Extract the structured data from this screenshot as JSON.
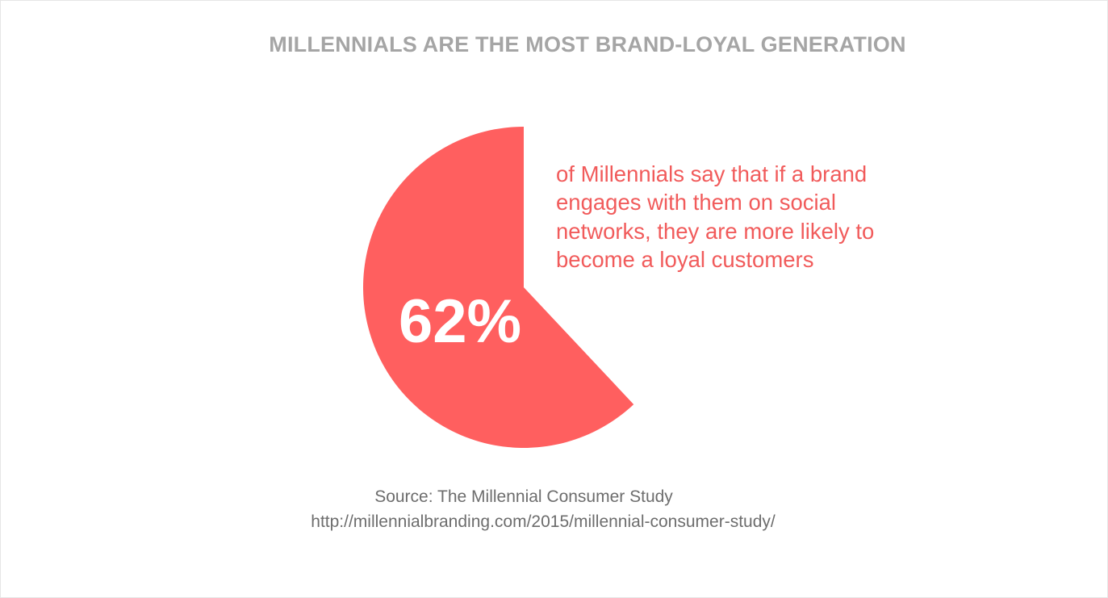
{
  "colors": {
    "accent": "#ff5f5f",
    "title": "#a5a5a5",
    "description": "#f15b5b",
    "source": "#6d6d6d",
    "background": "#ffffff"
  },
  "chart_data": {
    "type": "pie",
    "title": "MILLENNIALS ARE THE MOST BRAND-LOYAL GENERATION",
    "slices": [
      {
        "label": "62%",
        "value": 62
      }
    ],
    "total": 100,
    "value_label": "62%",
    "description_lines": [
      "of Millennials say that if a brand",
      "engages with them on social",
      "networks, they are more likely to",
      "become a loyal customers"
    ],
    "source": "Source: The Millennial Consumer Study",
    "source_url": "http://millennialbranding.com/2015/millennial-consumer-study/"
  }
}
